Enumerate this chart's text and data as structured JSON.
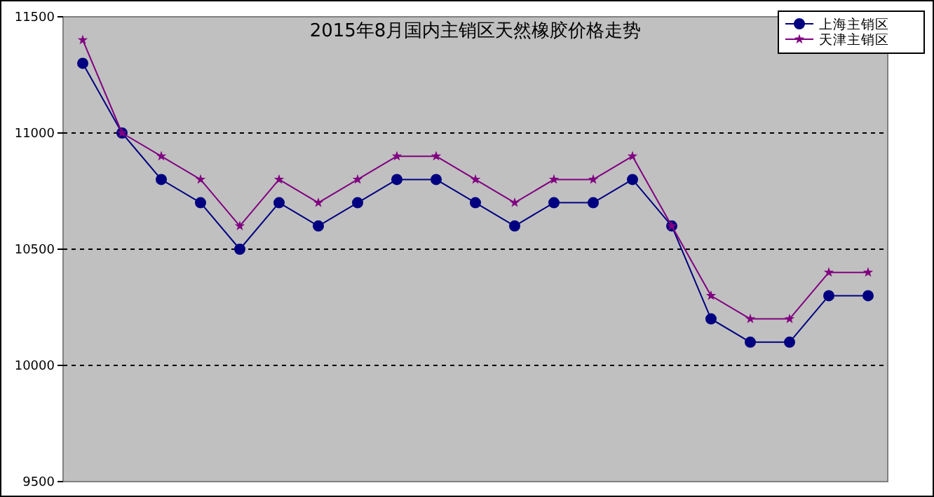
{
  "chart_data": {
    "type": "line",
    "title": "2015年8月国内主销区天然橡胶价格走势",
    "categories": [
      null,
      null,
      null,
      null,
      null,
      null,
      null,
      null,
      null,
      null,
      null,
      null,
      null,
      null,
      null,
      null,
      null,
      null,
      null,
      null,
      null
    ],
    "series": [
      {
        "name": "上海主销区",
        "color": "#000080",
        "marker": "circle",
        "values": [
          11300,
          11000,
          10800,
          10700,
          10500,
          10700,
          10600,
          10700,
          10800,
          10800,
          10700,
          10600,
          10700,
          10700,
          10800,
          10600,
          10200,
          10100,
          10100,
          10300,
          10300
        ]
      },
      {
        "name": "天津主销区",
        "color": "#800080",
        "marker": "star",
        "values": [
          11400,
          11000,
          10900,
          10800,
          10600,
          10800,
          10700,
          10800,
          10900,
          10900,
          10800,
          10700,
          10800,
          10800,
          10900,
          10600,
          10300,
          10200,
          10200,
          10400,
          10400
        ]
      }
    ],
    "ylim": [
      9500,
      11500
    ],
    "yticks": [
      9500,
      10000,
      10500,
      11000,
      11500
    ],
    "grid": "y",
    "legend": "top right"
  }
}
